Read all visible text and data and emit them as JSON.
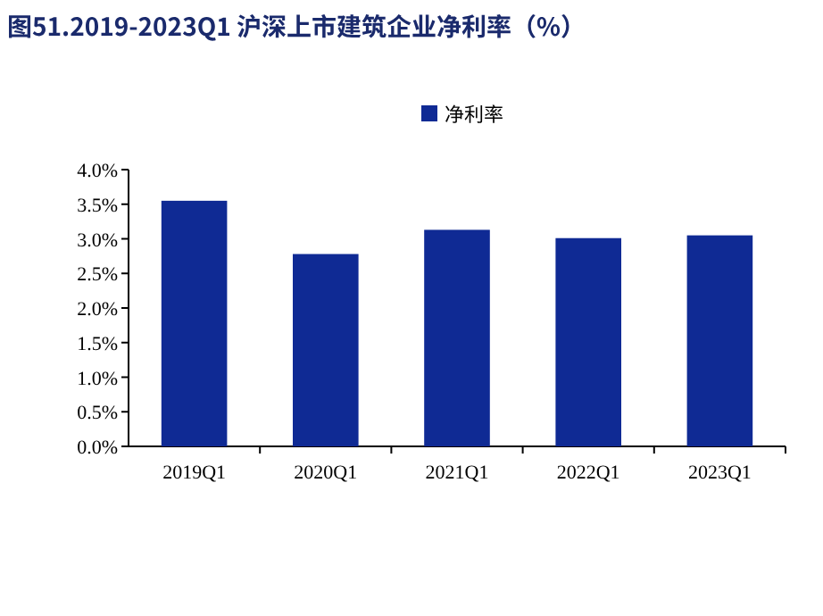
{
  "chart_data": {
    "type": "bar",
    "title": "图51.2019-2023Q1 沪深上市建筑企业净利率（%）",
    "categories": [
      "2019Q1",
      "2020Q1",
      "2021Q1",
      "2022Q1",
      "2023Q1"
    ],
    "series": [
      {
        "name": "净利率",
        "color": "#0f2a94",
        "values": [
          3.55,
          2.78,
          3.13,
          3.01,
          3.05
        ]
      }
    ],
    "ylim": [
      0,
      4
    ],
    "yticks": [
      {
        "value": 0,
        "label": "0.0%"
      },
      {
        "value": 0.5,
        "label": "0.5%"
      },
      {
        "value": 1,
        "label": "1.0%"
      },
      {
        "value": 1.5,
        "label": "1.5%"
      },
      {
        "value": 2,
        "label": "2.0%"
      },
      {
        "value": 2.5,
        "label": "2.5%"
      },
      {
        "value": 3,
        "label": "3.0%"
      },
      {
        "value": 3.5,
        "label": "3.5%"
      },
      {
        "value": 4,
        "label": "4.0%"
      }
    ],
    "legend": "top"
  }
}
